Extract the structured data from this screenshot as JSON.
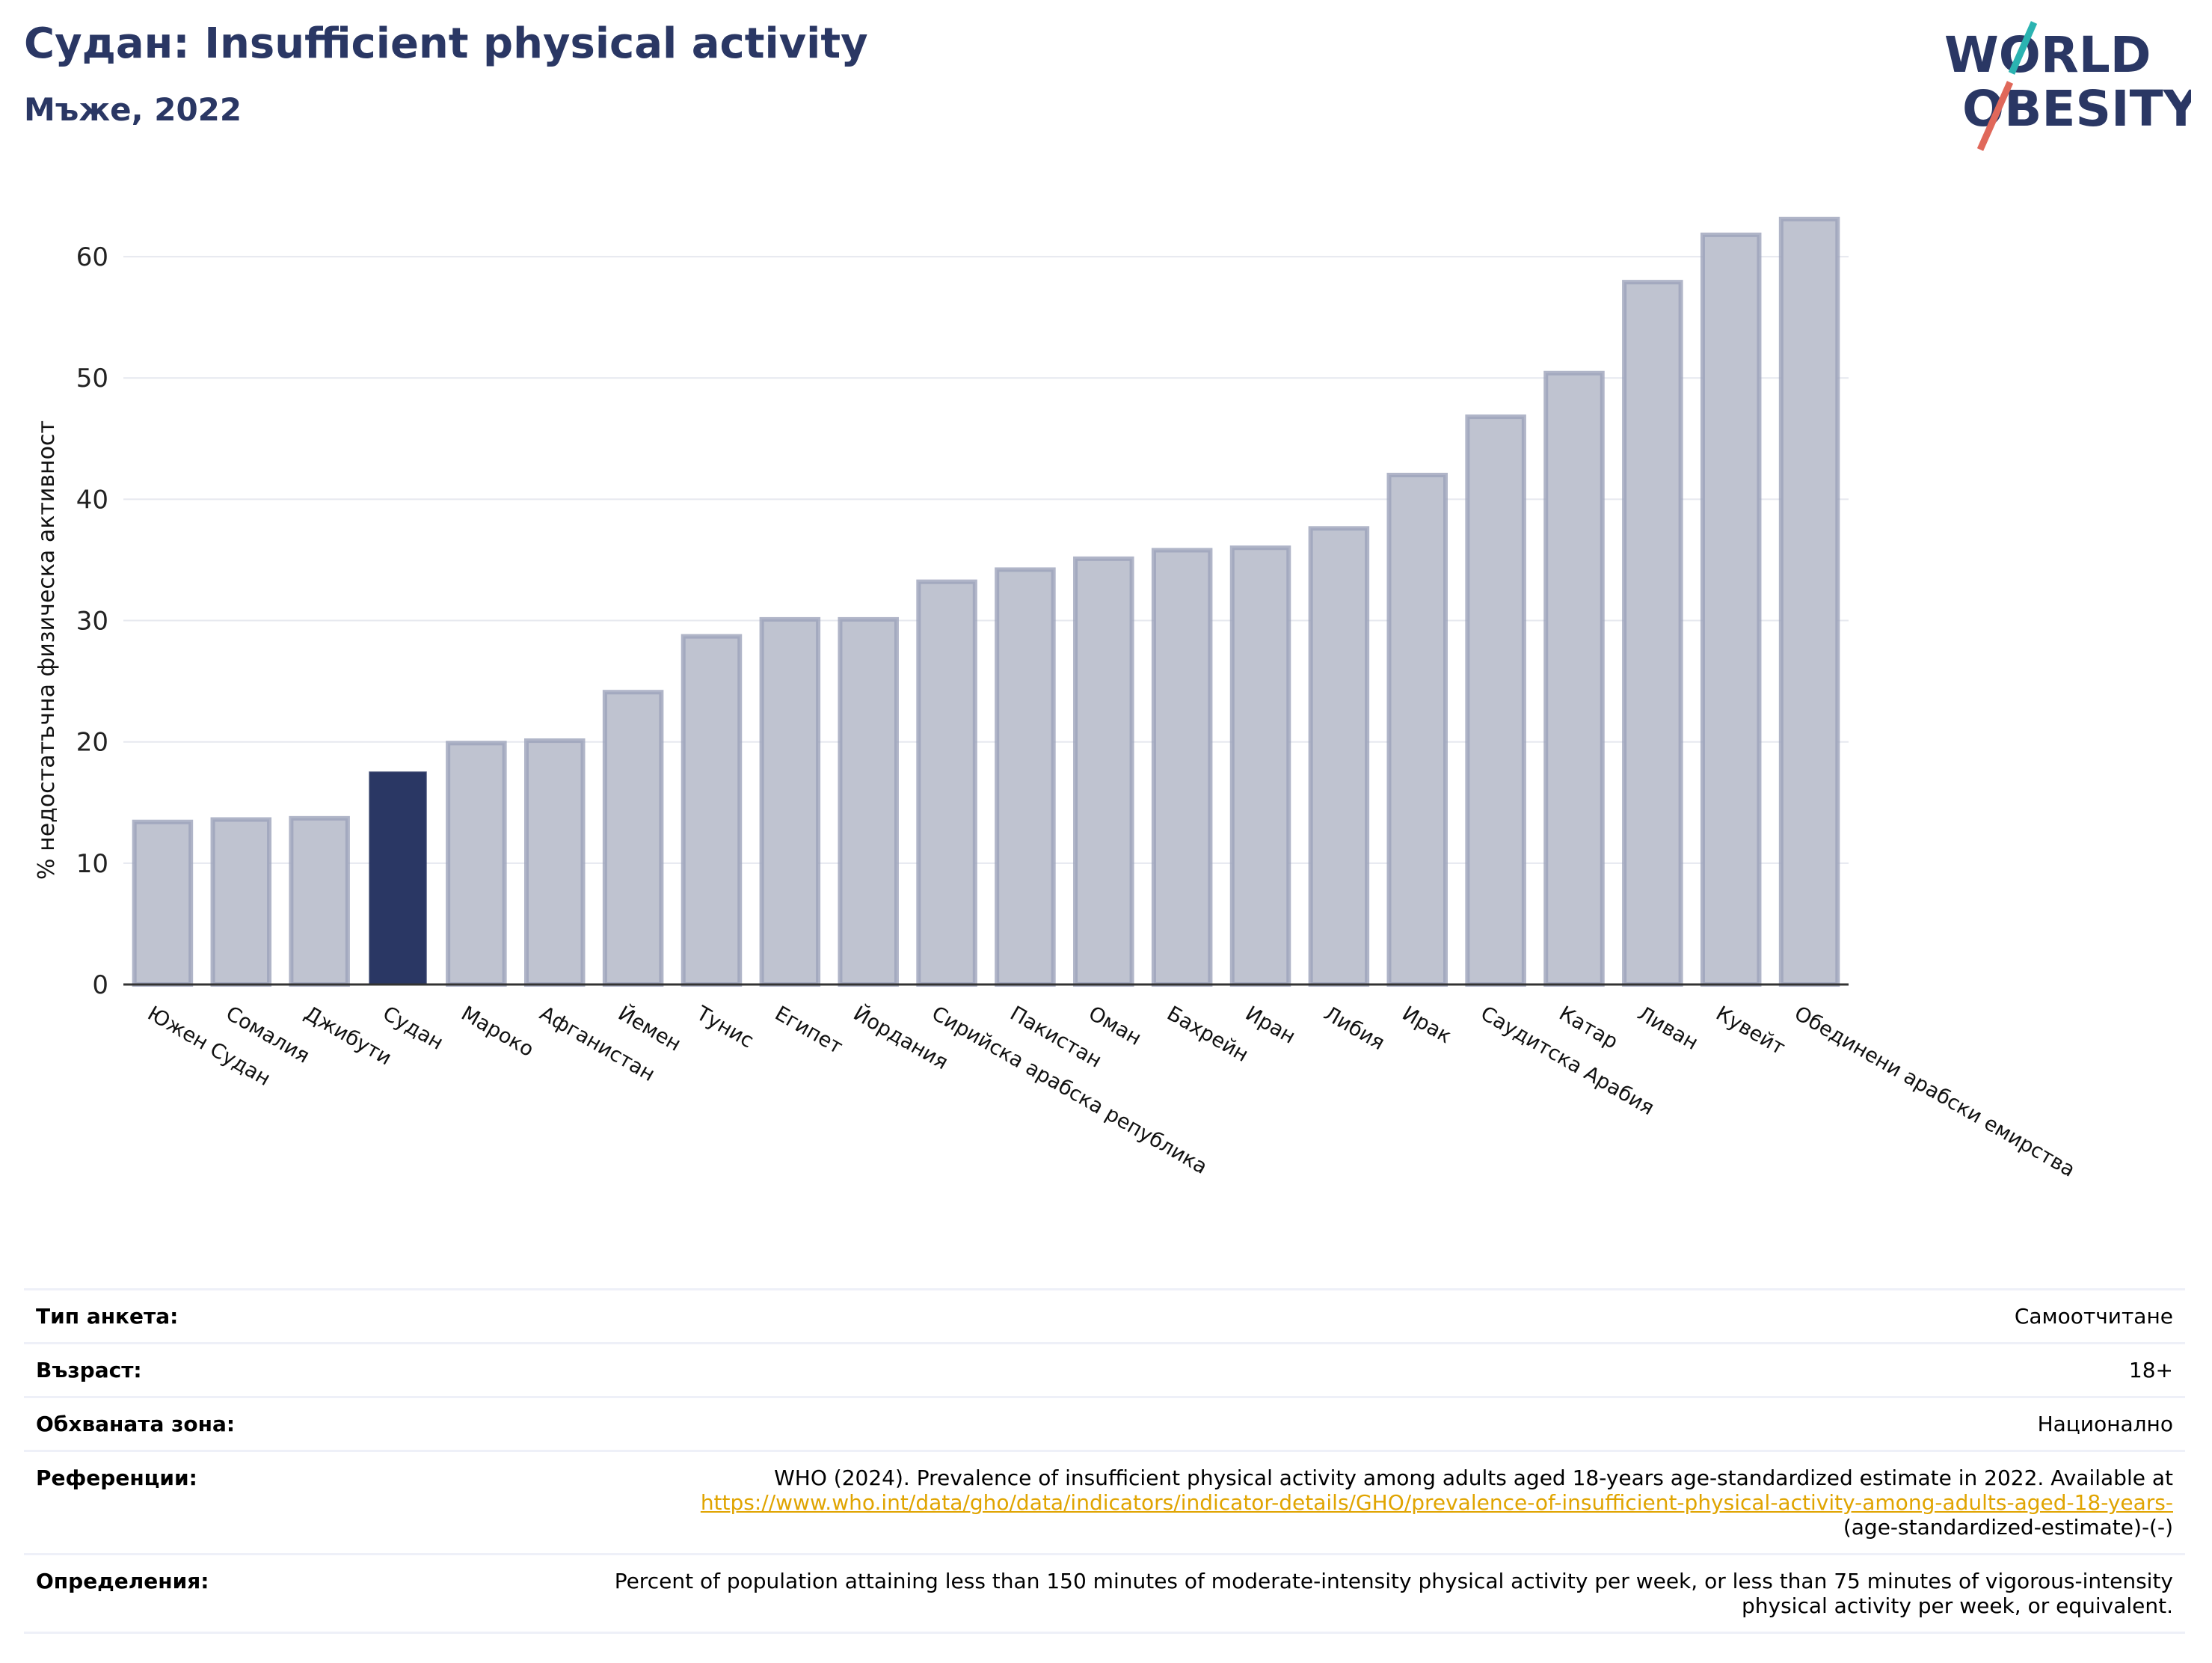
{
  "header": {
    "title": "Судан: Insufficient physical activity",
    "subtitle": "Мъже, 2022",
    "logo_line1": "WORLD",
    "logo_line2": "OBESITY"
  },
  "colors": {
    "highlight": "#2a3764",
    "bar": "#bfc3d0",
    "bar_edge": "#9ca3ba",
    "title": "#2a3764",
    "logo_teal": "#2bb3b1",
    "logo_red": "#e0685a",
    "link": "#e0a400"
  },
  "chart_data": {
    "type": "bar",
    "ylabel": "% недостатъчна физическа активност",
    "ylim": [
      0,
      65
    ],
    "yticks": [
      0,
      10,
      20,
      30,
      40,
      50,
      60
    ],
    "grid": true,
    "highlight": "Судан",
    "categories": [
      "Южен Судан",
      "Сомалия",
      "Джибути",
      "Судан",
      "Мароко",
      "Афганистан",
      "Йемен",
      "Тунис",
      "Египет",
      "Йордания",
      "Сирийска арабска република",
      "Пакистан",
      "Оман",
      "Бахрейн",
      "Иран",
      "Либия",
      "Ирак",
      "Саудитска Арабия",
      "Катар",
      "Ливан",
      "Кувейт",
      "Обединени арабски емирства"
    ],
    "values": [
      13.4,
      13.6,
      13.7,
      17.5,
      19.9,
      20.1,
      24.1,
      28.7,
      30.1,
      30.1,
      33.2,
      34.2,
      35.1,
      35.8,
      36.0,
      37.6,
      42.0,
      46.8,
      50.4,
      57.9,
      61.8,
      63.1
    ]
  },
  "info": {
    "survey_type_label": "Тип анкета:",
    "survey_type_value": "Самоотчитане",
    "age_label": "Възраст:",
    "age_value": "18+",
    "area_label": "Обхваната зона:",
    "area_value": "Национално",
    "references_label": "Референции:",
    "references_text": "WHO (2024). Prevalence of insufficient physical activity among adults aged 18-years age-standardized estimate in 2022. Available at",
    "references_link": "https://www.who.int/data/gho/data/indicators/indicator-details/GHO/prevalence-of-insufficient-physical-activity-among-adults-aged-18-years-",
    "references_tail": "(age-standardized-estimate)-(-)",
    "definitions_label": "Определения:",
    "definitions_text": "Percent of population attaining less than 150 minutes of moderate-intensity physical activity per week, or less than 75 minutes of vigorous-intensity physical activity per week, or equivalent."
  }
}
